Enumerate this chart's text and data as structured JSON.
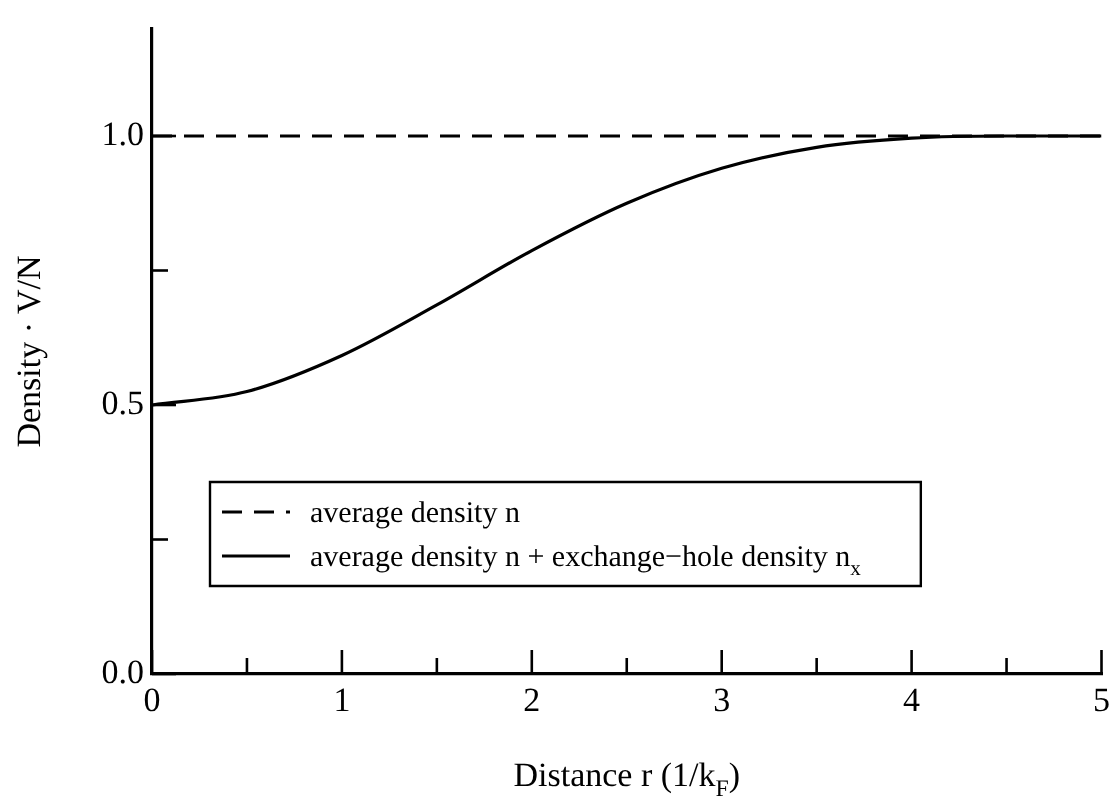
{
  "chart_data": {
    "type": "line",
    "xlabel": "Distance r (1/k$_{F}$)",
    "ylabel": "Density · V/N",
    "xlim": [
      0,
      5
    ],
    "ylim": [
      0,
      1.2
    ],
    "xticks": [
      0,
      {
        "value": 0.5,
        "label": null
      },
      1,
      {
        "value": 1.5,
        "label": null
      },
      2,
      {
        "value": 2.5,
        "label": null
      },
      3,
      {
        "value": 3.5,
        "label": null
      },
      4,
      {
        "value": 4.5,
        "label": null
      },
      5
    ],
    "yticks": [
      {
        "value": 0,
        "label": "0.0"
      },
      {
        "value": 0.25,
        "label": null
      },
      {
        "value": 0.5,
        "label": "0.5"
      },
      {
        "value": 0.75,
        "label": null
      },
      {
        "value": 1,
        "label": "1.0"
      }
    ],
    "grid": false,
    "legend": "bottom left",
    "marker": "none",
    "series": [
      {
        "name": "average density n",
        "color": "#000000",
        "line_style": "dashed",
        "x": [
          0,
          5
        ],
        "values": [
          1,
          1
        ]
      },
      {
        "name": "average density n + exchange−hole density n$_{x}$",
        "color": "#000000",
        "line_style": "solid",
        "x": [
          0,
          0.5,
          1,
          1.5,
          2,
          2.5,
          3,
          3.5,
          4,
          4.5,
          5
        ],
        "values": [
          0.5,
          0.525,
          0.592,
          0.686,
          0.787,
          0.875,
          0.94,
          0.979,
          0.996,
          1.0,
          1.0
        ]
      }
    ]
  }
}
